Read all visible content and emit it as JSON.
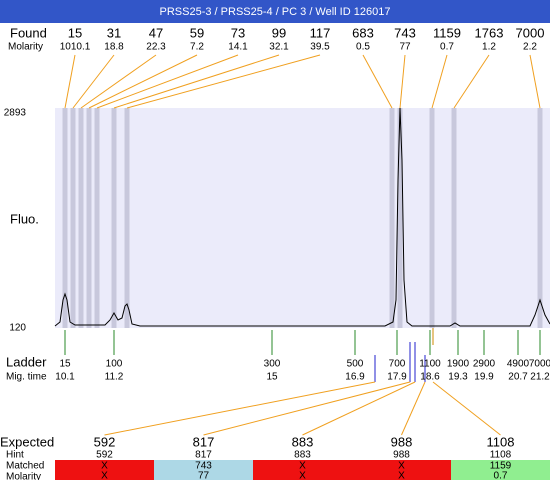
{
  "title": "PRSS25-3 / PRSS25-4 / PC 3 / Well ID 126017",
  "found": {
    "label": "Found",
    "molarity_label": "Molarity",
    "items": [
      {
        "size": 15,
        "molarity": 1010.1
      },
      {
        "size": 31,
        "molarity": 18.8
      },
      {
        "size": 47,
        "molarity": 22.3
      },
      {
        "size": 59,
        "molarity": 7.2
      },
      {
        "size": 73,
        "molarity": 14.1
      },
      {
        "size": 99,
        "molarity": 32.1
      },
      {
        "size": 117,
        "molarity": 39.5
      },
      {
        "size": 683,
        "molarity": 0.5
      },
      {
        "size": 743,
        "molarity": 77
      },
      {
        "size": 1159,
        "molarity": 0.7
      },
      {
        "size": 1763,
        "molarity": 1.2
      },
      {
        "size": 7000,
        "molarity": 2.2
      }
    ]
  },
  "axis": {
    "label": "Fluo.",
    "max": 2893,
    "min": 120
  },
  "ladder": {
    "label": "Ladder",
    "time_label": "Mig. time",
    "items": [
      {
        "size": 15,
        "time": 10.1
      },
      {
        "size": 100,
        "time": 11.2
      },
      {
        "size": 300,
        "time": 15
      },
      {
        "size": 500,
        "time": 16.9
      },
      {
        "size": 700,
        "time": 17.9
      },
      {
        "size": 1100,
        "time": 18.6
      },
      {
        "size": 1900,
        "time": 19.3
      },
      {
        "size": 2900,
        "time": 19.9
      },
      {
        "size": 4900,
        "time": 20.7
      },
      {
        "size": 7000,
        "time": 21.2
      }
    ]
  },
  "expected": {
    "labels": {
      "expected": "Expected",
      "hint": "Hint",
      "matched": "Matched",
      "molarity": "Molarity"
    },
    "items": [
      {
        "expected": 592,
        "hint": 592,
        "matched": "X",
        "molarity": "X"
      },
      {
        "expected": 817,
        "hint": 817,
        "matched": 743,
        "molarity": 77
      },
      {
        "expected": 883,
        "hint": 883,
        "matched": "X",
        "molarity": "X"
      },
      {
        "expected": 988,
        "hint": 988,
        "matched": "X",
        "molarity": "X"
      },
      {
        "expected": 1108,
        "hint": 1108,
        "matched": 1159,
        "molarity": 0.7
      }
    ]
  }
}
